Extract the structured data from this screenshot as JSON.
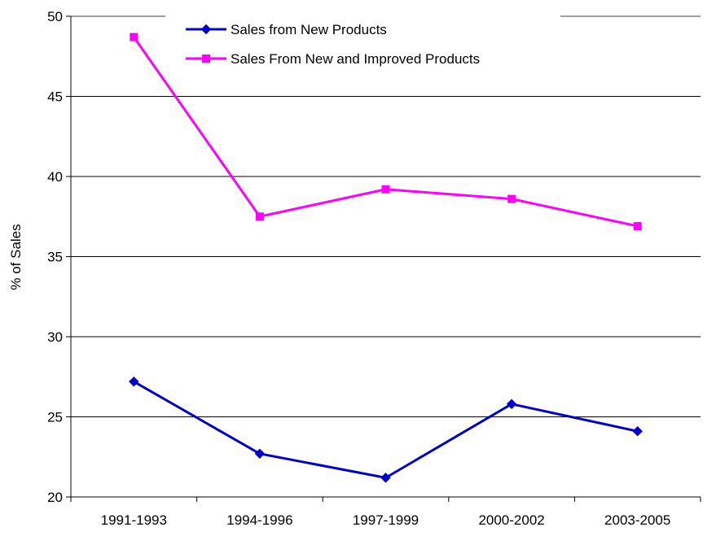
{
  "chart_data": {
    "type": "line",
    "categories": [
      "1991-1993",
      "1994-1996",
      "1997-1999",
      "2000-2002",
      "2003-2005"
    ],
    "series": [
      {
        "name": "Sales from New Products",
        "values": [
          27.2,
          22.7,
          21.2,
          25.8,
          24.1
        ],
        "color": "#0000cc",
        "marker": "diamond"
      },
      {
        "name": "Sales From New and Improved Products",
        "values": [
          48.7,
          37.5,
          39.2,
          38.6,
          36.9
        ],
        "color": "#ff00ff",
        "marker": "square"
      }
    ],
    "title": "",
    "xlabel": "",
    "ylabel": "% of Sales",
    "ylim": [
      20,
      50
    ],
    "yticks": [
      "20",
      "25",
      "30",
      "35",
      "40",
      "45",
      "50"
    ],
    "grid": true,
    "legend_position": "top"
  }
}
